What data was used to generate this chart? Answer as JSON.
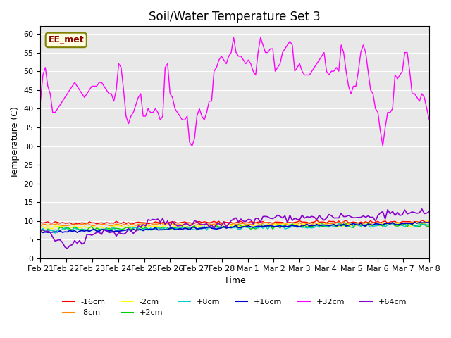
{
  "title": "Soil/Water Temperature Set 3",
  "xlabel": "Time",
  "ylabel": "Temperature (C)",
  "background_color": "#e8e8e8",
  "ylim": [
    0,
    62
  ],
  "yticks": [
    0,
    5,
    10,
    15,
    20,
    25,
    30,
    35,
    40,
    45,
    50,
    55,
    60
  ],
  "legend_entries": [
    "-16cm",
    "-8cm",
    "-2cm",
    "+2cm",
    "+8cm",
    "+16cm",
    "+32cm",
    "+64cm"
  ],
  "legend_colors": [
    "#ff0000",
    "#ff8800",
    "#ffff00",
    "#00cc00",
    "#00cccc",
    "#0000cc",
    "#ff00ff",
    "#8800cc"
  ],
  "EE_met_label": "EE_met",
  "x_tick_labels": [
    "Feb 21",
    "Feb 22",
    "Feb 23",
    "Feb 24",
    "Feb 25",
    "Feb 26",
    "Feb 27",
    "Feb 28",
    "Mar 1",
    "Mar 2",
    "Mar 3",
    "Mar 4",
    "Mar 5",
    "Mar 6",
    "Mar 7",
    "Mar 8"
  ],
  "n_points": 160
}
